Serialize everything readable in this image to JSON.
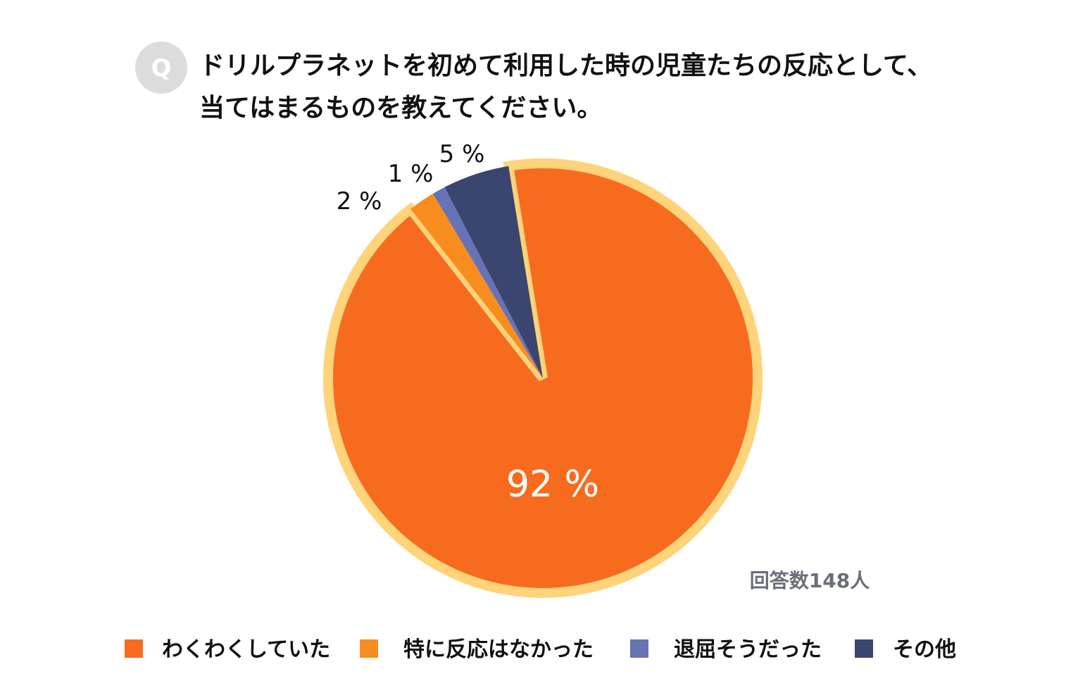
{
  "question": {
    "badge": "Q",
    "line1": "ドリルプラネットを初めて利用した時の児童たちの反応として、",
    "line2": "当てはまるものを教えてください。"
  },
  "respondents": "回答数148人",
  "colors": {
    "badge": "#dcdcdc",
    "outline": "#ffd37a"
  },
  "chart_data": {
    "type": "pie",
    "series": [
      {
        "name": "わくわくしていた",
        "value": 92,
        "label": "92 %",
        "color": "#f76b1f"
      },
      {
        "name": "特に反応はなかった",
        "value": 2,
        "label": "2 %",
        "color": "#f98c1f"
      },
      {
        "name": "退屈そうだった",
        "value": 1,
        "label": "1 %",
        "color": "#6673b4"
      },
      {
        "name": "その他",
        "value": 5,
        "label": "5 %",
        "color": "#3a4670"
      }
    ],
    "legend": "bottom"
  }
}
